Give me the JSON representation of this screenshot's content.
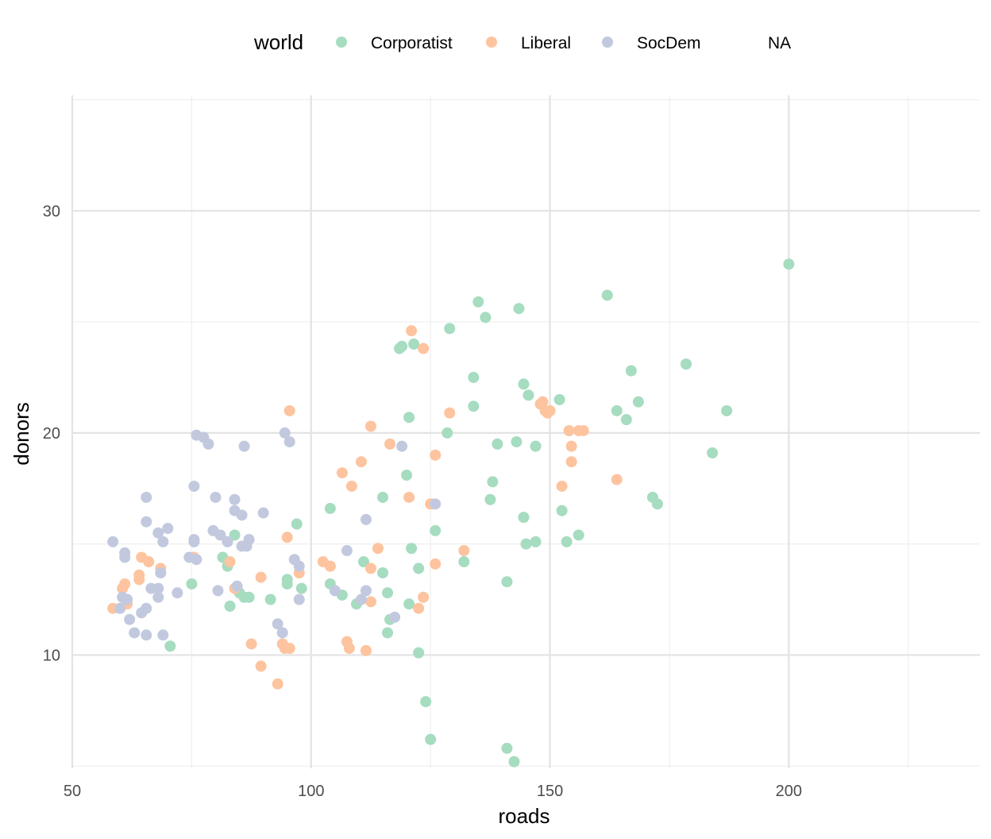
{
  "chart_data": {
    "type": "scatter",
    "xlabel": "roads",
    "ylabel": "donors",
    "xlim": [
      50,
      240
    ],
    "ylim": [
      4.9,
      35.2
    ],
    "x_ticks": [
      50,
      100,
      150,
      200
    ],
    "y_ticks": [
      10,
      20,
      30
    ],
    "grid": true,
    "legend": {
      "title": "world",
      "position": "top",
      "entries": [
        {
          "label": "Corporatist",
          "color": "#a6dcc0"
        },
        {
          "label": "Liberal",
          "color": "#fdc49f"
        },
        {
          "label": "SocDem",
          "color": "#c2c9df"
        },
        {
          "label": "NA",
          "color": "none"
        }
      ]
    },
    "series": [
      {
        "name": "Corporatist",
        "color": "#a6dcc0",
        "points": [
          [
            200,
            27.6
          ],
          [
            162,
            26.2
          ],
          [
            135,
            25.9
          ],
          [
            143.5,
            25.6
          ],
          [
            136.5,
            25.2
          ],
          [
            129,
            24.7
          ],
          [
            121.5,
            24.0
          ],
          [
            119,
            23.9
          ],
          [
            118.5,
            23.8
          ],
          [
            178.5,
            23.1
          ],
          [
            167,
            22.8
          ],
          [
            134,
            22.5
          ],
          [
            144.5,
            22.2
          ],
          [
            145.5,
            21.7
          ],
          [
            152,
            21.5
          ],
          [
            168.5,
            21.4
          ],
          [
            134,
            21.2
          ],
          [
            164,
            21.0
          ],
          [
            187,
            21.0
          ],
          [
            120.5,
            20.7
          ],
          [
            166,
            20.6
          ],
          [
            128.5,
            20.0
          ],
          [
            139,
            19.5
          ],
          [
            143,
            19.6
          ],
          [
            147,
            19.4
          ],
          [
            184,
            19.1
          ],
          [
            120,
            18.1
          ],
          [
            138,
            17.8
          ],
          [
            171.5,
            17.1
          ],
          [
            137.5,
            17.0
          ],
          [
            172.5,
            16.8
          ],
          [
            115,
            17.1
          ],
          [
            104,
            16.6
          ],
          [
            152.5,
            16.5
          ],
          [
            144.5,
            16.2
          ],
          [
            97,
            15.9
          ],
          [
            126,
            15.6
          ],
          [
            156,
            15.4
          ],
          [
            153.5,
            15.1
          ],
          [
            147,
            15.1
          ],
          [
            145,
            15.0
          ],
          [
            121,
            14.8
          ],
          [
            84,
            15.4
          ],
          [
            81.5,
            14.4
          ],
          [
            111,
            14.2
          ],
          [
            132,
            14.2
          ],
          [
            82.5,
            14.0
          ],
          [
            122.5,
            13.9
          ],
          [
            115,
            13.7
          ],
          [
            95,
            13.4
          ],
          [
            95,
            13.2
          ],
          [
            104,
            13.2
          ],
          [
            141,
            13.3
          ],
          [
            75,
            13.2
          ],
          [
            98,
            13.0
          ],
          [
            116,
            12.8
          ],
          [
            85,
            12.8
          ],
          [
            106.5,
            12.7
          ],
          [
            86,
            12.6
          ],
          [
            87,
            12.6
          ],
          [
            91.5,
            12.5
          ],
          [
            83,
            12.2
          ],
          [
            109.5,
            12.3
          ],
          [
            120.5,
            12.3
          ],
          [
            116.5,
            11.6
          ],
          [
            116,
            11.0
          ],
          [
            70.5,
            10.4
          ],
          [
            122.5,
            10.1
          ],
          [
            124,
            7.9
          ],
          [
            125,
            6.2
          ],
          [
            141,
            5.8
          ],
          [
            142.5,
            5.2
          ]
        ]
      },
      {
        "name": "Liberal",
        "color": "#fdc49f",
        "points": [
          [
            121,
            24.6
          ],
          [
            123.5,
            23.8
          ],
          [
            95.5,
            21.0
          ],
          [
            129,
            20.9
          ],
          [
            148.5,
            21.4
          ],
          [
            148,
            21.3
          ],
          [
            149,
            21.0
          ],
          [
            150,
            21.0
          ],
          [
            149.5,
            20.9
          ],
          [
            112.5,
            20.3
          ],
          [
            154,
            20.1
          ],
          [
            156,
            20.1
          ],
          [
            157,
            20.1
          ],
          [
            116.5,
            19.5
          ],
          [
            154.5,
            19.4
          ],
          [
            126,
            19.0
          ],
          [
            110.5,
            18.7
          ],
          [
            154.5,
            18.7
          ],
          [
            106.5,
            18.2
          ],
          [
            164,
            17.9
          ],
          [
            108.5,
            17.6
          ],
          [
            152.5,
            17.6
          ],
          [
            120.5,
            17.1
          ],
          [
            125,
            16.8
          ],
          [
            95,
            15.3
          ],
          [
            114,
            14.8
          ],
          [
            132,
            14.7
          ],
          [
            64.5,
            14.4
          ],
          [
            75.5,
            14.4
          ],
          [
            66,
            14.2
          ],
          [
            83,
            14.2
          ],
          [
            102.5,
            14.2
          ],
          [
            104,
            14.0
          ],
          [
            126,
            14.1
          ],
          [
            68.5,
            13.9
          ],
          [
            112.5,
            13.9
          ],
          [
            97.5,
            13.7
          ],
          [
            64,
            13.6
          ],
          [
            64,
            13.4
          ],
          [
            89.5,
            13.5
          ],
          [
            61,
            13.2
          ],
          [
            60.5,
            13.0
          ],
          [
            84,
            13.0
          ],
          [
            123.5,
            12.6
          ],
          [
            112.5,
            12.4
          ],
          [
            61.5,
            12.3
          ],
          [
            58.5,
            12.1
          ],
          [
            122.5,
            12.1
          ],
          [
            107.5,
            10.6
          ],
          [
            87.5,
            10.5
          ],
          [
            94,
            10.5
          ],
          [
            95.5,
            10.3
          ],
          [
            94.5,
            10.3
          ],
          [
            108,
            10.3
          ],
          [
            111.5,
            10.2
          ],
          [
            89.5,
            9.5
          ],
          [
            93,
            8.7
          ]
        ]
      },
      {
        "name": "SocDem",
        "color": "#c2c9df",
        "points": [
          [
            76,
            19.9
          ],
          [
            77.5,
            19.8
          ],
          [
            78.5,
            19.5
          ],
          [
            86,
            19.4
          ],
          [
            94.5,
            20.0
          ],
          [
            95.5,
            19.6
          ],
          [
            119,
            19.4
          ],
          [
            75.5,
            17.6
          ],
          [
            80,
            17.1
          ],
          [
            84,
            17.0
          ],
          [
            65.5,
            17.1
          ],
          [
            126,
            16.8
          ],
          [
            84,
            16.5
          ],
          [
            85.5,
            16.3
          ],
          [
            90,
            16.4
          ],
          [
            111.5,
            16.1
          ],
          [
            65.5,
            16.0
          ],
          [
            70,
            15.7
          ],
          [
            68,
            15.5
          ],
          [
            79.5,
            15.6
          ],
          [
            81,
            15.4
          ],
          [
            75.5,
            15.2
          ],
          [
            69,
            15.1
          ],
          [
            75.5,
            15.1
          ],
          [
            82.5,
            15.1
          ],
          [
            87,
            15.2
          ],
          [
            58.5,
            15.1
          ],
          [
            85.5,
            14.9
          ],
          [
            86.5,
            14.9
          ],
          [
            61,
            14.6
          ],
          [
            61,
            14.4
          ],
          [
            74.5,
            14.4
          ],
          [
            76,
            14.3
          ],
          [
            107.5,
            14.7
          ],
          [
            96.5,
            14.3
          ],
          [
            97.5,
            14.0
          ],
          [
            68.5,
            13.7
          ],
          [
            66.5,
            13.0
          ],
          [
            68,
            13.0
          ],
          [
            72,
            12.8
          ],
          [
            80.5,
            12.9
          ],
          [
            84.5,
            13.1
          ],
          [
            105,
            12.9
          ],
          [
            111.5,
            12.9
          ],
          [
            60.5,
            12.6
          ],
          [
            61.5,
            12.5
          ],
          [
            68,
            12.6
          ],
          [
            97.5,
            12.5
          ],
          [
            65.5,
            12.1
          ],
          [
            60,
            12.1
          ],
          [
            64.5,
            11.9
          ],
          [
            110.5,
            12.5
          ],
          [
            62,
            11.6
          ],
          [
            117.5,
            11.7
          ],
          [
            93,
            11.4
          ],
          [
            63,
            11.0
          ],
          [
            65.5,
            10.9
          ],
          [
            69,
            10.9
          ],
          [
            94,
            11.0
          ]
        ]
      }
    ]
  }
}
